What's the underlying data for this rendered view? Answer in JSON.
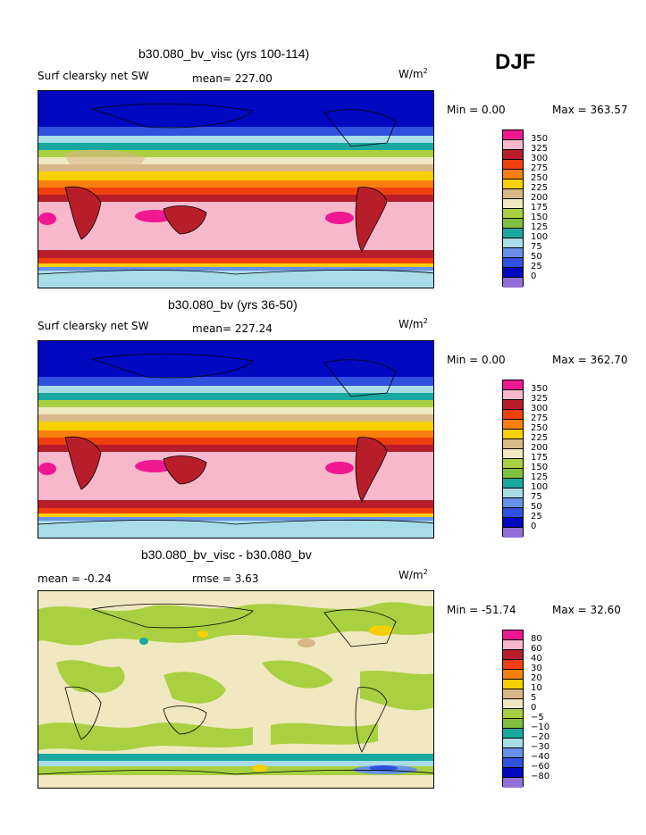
{
  "season": "DJF",
  "units_base": "W/m",
  "units_exp": "2",
  "panels": [
    {
      "title": "b30.080_bv_visc (yrs 100-114)",
      "left_label": "Surf clearsky net SW",
      "stat_label": "mean= 227.00",
      "min_text": "Min =   0.00",
      "max_text": "Max = 363.57"
    },
    {
      "title": "b30.080_bv (yrs 36-50)",
      "left_label": "Surf clearsky net SW",
      "stat_label": "mean= 227.24",
      "min_text": "Min =   0.00",
      "max_text": "Max = 362.70"
    },
    {
      "title": "b30.080_bv_visc - b30.080_bv",
      "left_label": "mean =   -0.24",
      "stat_label": "rmse =    3.63",
      "min_text": "Min = -51.74",
      "max_text": "Max =  32.60"
    }
  ],
  "chart_data": [
    {
      "type": "heatmap",
      "title": "b30.080_bv_visc (yrs 100-114)",
      "variable": "Surf clearsky net SW",
      "units": "W/m2",
      "mean": 227.0,
      "min": 0.0,
      "max": 363.57,
      "contour_levels": [
        350,
        325,
        300,
        275,
        250,
        225,
        200,
        175,
        150,
        125,
        100,
        75,
        50,
        25,
        0
      ],
      "colors": [
        "#f01890",
        "#f8b8cc",
        "#b81e2a",
        "#f04010",
        "#f88010",
        "#f8d000",
        "#d8b888",
        "#f0e8c0",
        "#a8d040",
        "#80c040",
        "#18a8a0",
        "#a8dce8",
        "#6890e8",
        "#3050e0",
        "#0008c0",
        "#9070d8"
      ]
    },
    {
      "type": "heatmap",
      "title": "b30.080_bv (yrs 36-50)",
      "variable": "Surf clearsky net SW",
      "units": "W/m2",
      "mean": 227.24,
      "min": 0.0,
      "max": 362.7,
      "contour_levels": [
        350,
        325,
        300,
        275,
        250,
        225,
        200,
        175,
        150,
        125,
        100,
        75,
        50,
        25,
        0
      ],
      "colors": [
        "#f01890",
        "#f8b8cc",
        "#b81e2a",
        "#f04010",
        "#f88010",
        "#f8d000",
        "#d8b888",
        "#f0e8c0",
        "#a8d040",
        "#80c040",
        "#18a8a0",
        "#a8dce8",
        "#6890e8",
        "#3050e0",
        "#0008c0",
        "#9070d8"
      ]
    },
    {
      "type": "heatmap",
      "title": "b30.080_bv_visc - b30.080_bv",
      "units": "W/m2",
      "mean": -0.24,
      "rmse": 3.63,
      "min": -51.74,
      "max": 32.6,
      "contour_levels": [
        80,
        60,
        40,
        30,
        20,
        10,
        5,
        0,
        -5,
        -10,
        -20,
        -30,
        -40,
        -60,
        -80
      ],
      "colors": [
        "#f01890",
        "#f8b8cc",
        "#b81e2a",
        "#f04010",
        "#f88010",
        "#f8d000",
        "#d8b888",
        "#f0e8c0",
        "#a8d040",
        "#80c040",
        "#18a8a0",
        "#a8dce8",
        "#6890e8",
        "#3050e0",
        "#0008c0",
        "#9070d8"
      ]
    }
  ]
}
